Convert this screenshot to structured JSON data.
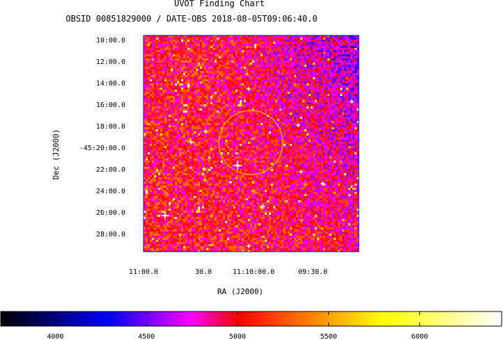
{
  "chart_data": {
    "type": "heatmap",
    "title": "UVOT Finding Chart",
    "subtitle": "OBSID 00851829000 / DATE-OBS 2018-08-05T09:06:40.0",
    "xlabel": "RA (J2000)",
    "ylabel": "Dec (J2000)",
    "x_ticks": [
      "11:00.0",
      "30.0",
      "11:10:00.0",
      "09:30.0"
    ],
    "y_ticks": [
      "10:00.0",
      "12:00.0",
      "14:00.0",
      "16:00.0",
      "18:00.0",
      "-45:20:00.0",
      "22:00.0",
      "24:00.0",
      "26:00.0",
      "28:00.0"
    ],
    "colorbar": {
      "range": [
        3700,
        6450
      ],
      "ticks": [
        4000,
        4500,
        5000,
        5500,
        6000
      ],
      "tick_labels": [
        "4000",
        "4500",
        "5000",
        "5500",
        "6000"
      ],
      "colors": [
        {
          "value": 3700,
          "color": "#000000"
        },
        {
          "value": 4300,
          "color": "#0000ff"
        },
        {
          "value": 4750,
          "color": "#ff00ff"
        },
        {
          "value": 5000,
          "color": "#ff0000"
        },
        {
          "value": 5800,
          "color": "#ffff00"
        },
        {
          "value": 6450,
          "color": "#ffffff"
        }
      ]
    },
    "marker": {
      "type": "circle",
      "color": "#ffa500"
    },
    "image_border_color": "#0000ff"
  }
}
